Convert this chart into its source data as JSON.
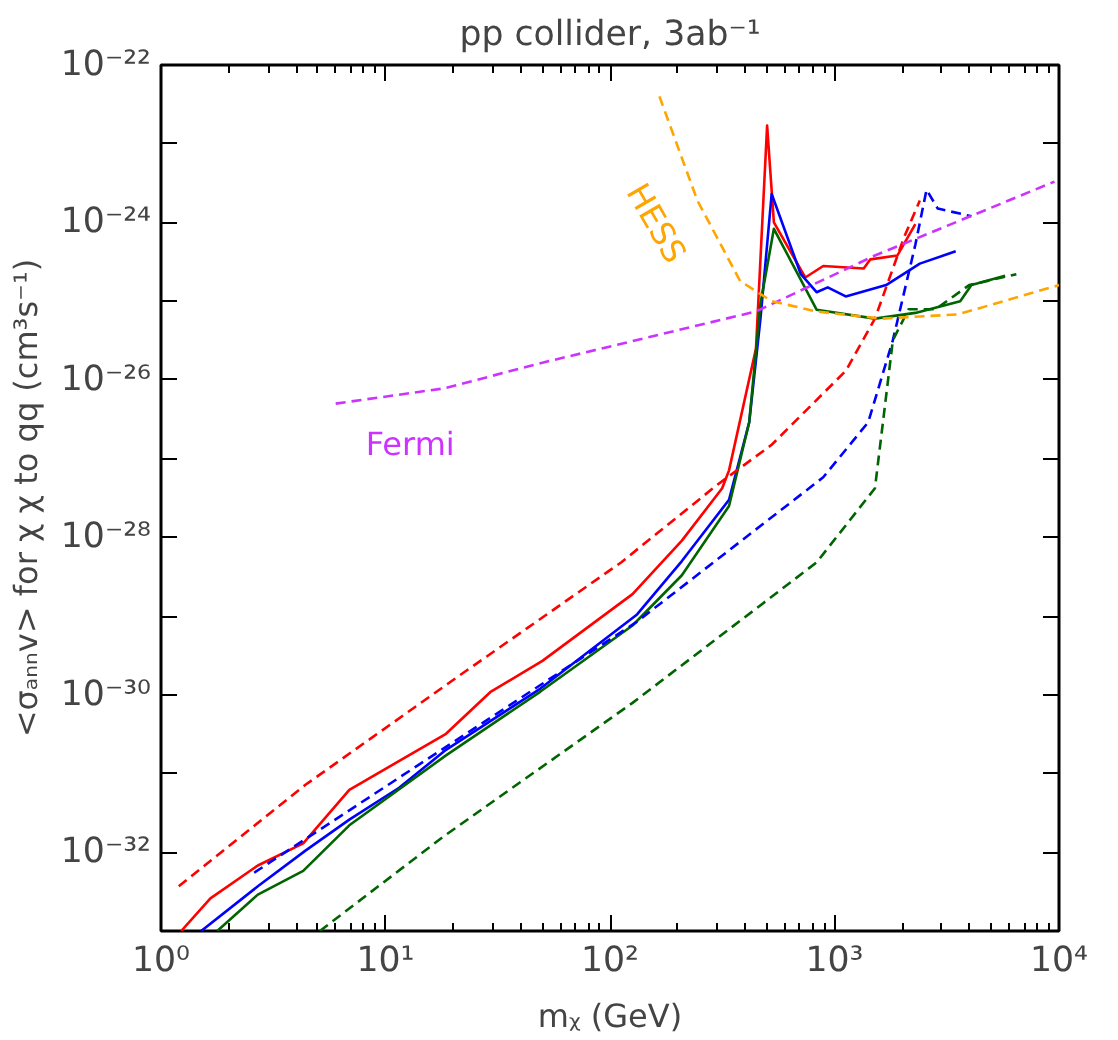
{
  "chart_data": {
    "type": "line",
    "title": "pp collider, 3ab⁻¹",
    "xlabel": "mᵪ (GeV)",
    "ylabel": "<σₐₙₙv> for χ χ to qq (cm³s⁻¹)",
    "log": "xy",
    "grid": false,
    "marker": "none",
    "xlim": [
      1,
      10000
    ],
    "ylim": [
      1e-33,
      1e-22
    ],
    "xticks": [
      {
        "value": 1,
        "label": "10⁰"
      },
      {
        "value": 10,
        "label": "10¹"
      },
      {
        "value": 100,
        "label": "10²"
      },
      {
        "value": 1000,
        "label": "10³"
      },
      {
        "value": 10000,
        "label": "10⁴"
      }
    ],
    "yticks": [
      {
        "value": 1e-32,
        "label": "10⁻³²"
      },
      {
        "value": 1e-31,
        "label": null
      },
      {
        "value": 1e-30,
        "label": "10⁻³⁰"
      },
      {
        "value": 1e-29,
        "label": null
      },
      {
        "value": 1e-28,
        "label": "10⁻²⁸"
      },
      {
        "value": 1e-27,
        "label": null
      },
      {
        "value": 1e-26,
        "label": "10⁻²⁶"
      },
      {
        "value": 1e-25,
        "label": null
      },
      {
        "value": 1e-24,
        "label": "10⁻²⁴"
      },
      {
        "value": 1e-23,
        "label": null
      },
      {
        "value": 1e-22,
        "label": "10⁻²²"
      }
    ],
    "series": [
      {
        "color": "#ff0000",
        "line_style": "solid",
        "x": [
          1.23,
          1.66,
          2.7,
          4.3,
          6.9,
          18.6,
          29.5,
          50,
          126,
          209,
          316,
          339,
          447,
          501,
          537,
          741,
          891,
          1349,
          1445,
          1905,
          2291
        ],
        "values": [
          1e-33,
          2.6e-33,
          6.8e-33,
          1.3e-32,
          6.2e-32,
          3.2e-31,
          1.1e-30,
          2.7e-30,
          1.9e-29,
          9.1e-29,
          4.2e-28,
          7.1e-28,
          2.5e-26,
          1.7e-23,
          1e-24,
          2e-25,
          2.8e-25,
          2.6e-25,
          3.4e-25,
          3.8e-25,
          9.5e-25
        ]
      },
      {
        "color": "#0000ff",
        "line_style": "solid",
        "x": [
          1.51,
          2.7,
          4.4,
          6.9,
          11.5,
          18.6,
          49,
          132,
          209,
          339,
          417,
          468,
          525,
          708,
          832,
          933,
          1122,
          1698,
          2399,
          3467
        ],
        "values": [
          1e-33,
          3.7e-33,
          1.05e-32,
          2.6e-32,
          6.6e-32,
          2e-31,
          1.2e-30,
          1.05e-29,
          5e-29,
          3e-28,
          2.9e-27,
          6e-26,
          2.3e-24,
          2.2e-25,
          1.3e-25,
          1.5e-25,
          1.15e-25,
          1.6e-25,
          3e-25,
          4.3e-25
        ]
      },
      {
        "color": "#006400",
        "line_style": "solid",
        "x": [
          1.78,
          2.7,
          4.3,
          6.9,
          18.6,
          49,
          126,
          209,
          339,
          417,
          468,
          537,
          832,
          1514,
          2291,
          3631,
          4074,
          5754
        ],
        "values": [
          1e-33,
          2.9e-33,
          5.8e-33,
          2.2e-32,
          1.7e-31,
          1.1e-30,
          7.6e-30,
          3.3e-29,
          2.5e-28,
          2.9e-27,
          9.3e-26,
          8.3e-25,
          7.8e-26,
          6e-26,
          7.1e-26,
          1e-25,
          1.6e-25,
          2.1e-25
        ]
      },
      {
        "color": "#ff0000",
        "line_style": "dashed",
        "x": [
          1.2,
          4.4,
          21,
          112,
          302,
          525,
          1122,
          1514,
          2042,
          2399
        ],
        "values": [
          3.7e-33,
          7.2e-32,
          1.7e-30,
          4.8e-29,
          4.7e-28,
          1.5e-27,
          1.3e-26,
          6e-26,
          6.5e-25,
          1.9e-24
        ]
      },
      {
        "color": "#0000ff",
        "line_style": "dashed",
        "x": [
          2.6,
          132,
          891,
          1413,
          1820,
          2291,
          2570,
          2884,
          4074
        ],
        "values": [
          5.5e-33,
          8.5e-30,
          5.8e-28,
          2.9e-27,
          3.2e-26,
          5.2e-25,
          2.6e-24,
          1.5e-24,
          1.2e-24
        ]
      },
      {
        "color": "#006400",
        "line_style": "dashed",
        "x": [
          5.1,
          18.2,
          126,
          832,
          1514,
          1820,
          2138,
          2818,
          3981,
          6457
        ],
        "values": [
          1e-33,
          1.6e-32,
          7.9e-31,
          4.8e-29,
          4.2e-28,
          3.2e-26,
          7.9e-26,
          7.9e-26,
          1.6e-25,
          2.2e-25
        ]
      },
      {
        "name": "Fermi",
        "color": "#cc33ff",
        "line_style": "dashed",
        "x": [
          6.0,
          18.2,
          52,
          447,
          1514,
          9550
        ],
        "values": [
          5e-27,
          7.8e-27,
          1.7e-26,
          7.4e-26,
          3.8e-25,
          3.3e-24
        ]
      },
      {
        "name": "HESS",
        "color": "#ffa500",
        "line_style": "dashed",
        "x": [
          166,
          245,
          380,
          525,
          832,
          1622,
          3548,
          10000
        ],
        "values": [
          4e-23,
          1.9e-24,
          1.8e-25,
          1e-25,
          7.4e-26,
          6e-26,
          6.8e-26,
          1.6e-25
        ]
      }
    ]
  }
}
